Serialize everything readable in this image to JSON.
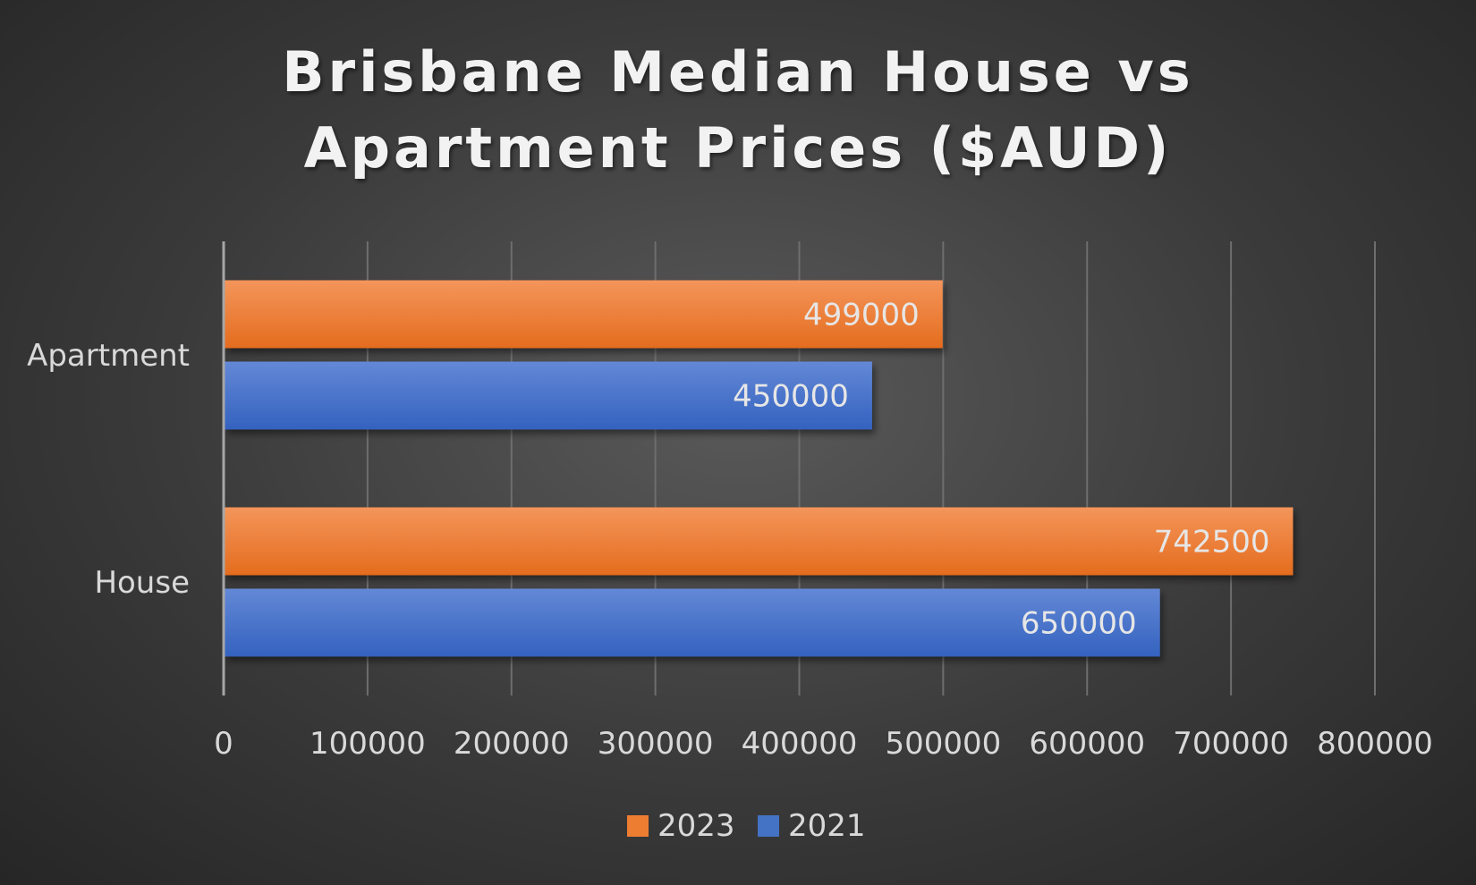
{
  "chart_data": {
    "type": "bar",
    "orientation": "horizontal",
    "title": [
      "Brisbane Median House vs",
      "Apartment Prices ($AUD)"
    ],
    "categories": [
      "Apartment",
      "House"
    ],
    "series": [
      {
        "name": "2023",
        "color": "#ed7d31",
        "values": [
          499000,
          742500
        ]
      },
      {
        "name": "2021",
        "color": "#4472c4",
        "values": [
          450000,
          650000
        ]
      }
    ],
    "xlim": [
      0,
      800000
    ],
    "xticks": [
      "0",
      "100000",
      "200000",
      "300000",
      "400000",
      "500000",
      "600000",
      "700000",
      "800000"
    ],
    "grid": true,
    "legend_position": "bottom",
    "data_labels": true
  }
}
